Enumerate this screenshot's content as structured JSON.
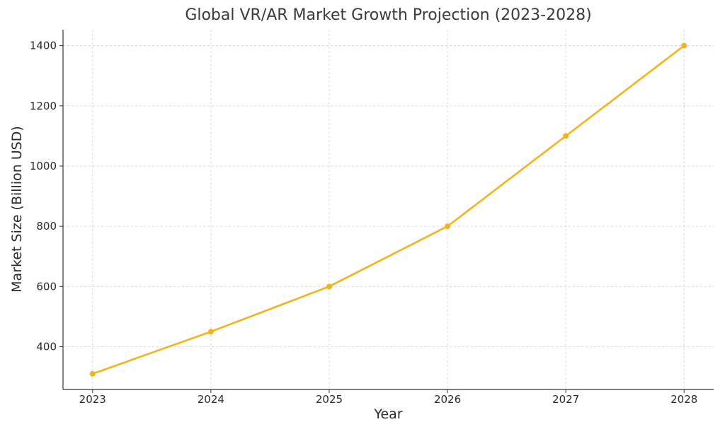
{
  "chart_data": {
    "type": "line",
    "title": "Global VR/AR Market Growth Projection (2023-2028)",
    "xlabel": "Year",
    "ylabel": "Market Size (Billion USD)",
    "x": [
      "2023",
      "2024",
      "2025",
      "2026",
      "2027",
      "2028"
    ],
    "series": [
      {
        "values": [
          310,
          450,
          600,
          800,
          1100,
          1400
        ],
        "color": "#f5b21a",
        "marker": "circle"
      }
    ],
    "xlim": [
      2022.75,
      2028.25
    ],
    "ylim": [
      258,
      1453
    ],
    "yticks": [
      400,
      600,
      800,
      1000,
      1200,
      1400
    ],
    "grid": true,
    "grid_style": "dashed",
    "legend": "none"
  }
}
